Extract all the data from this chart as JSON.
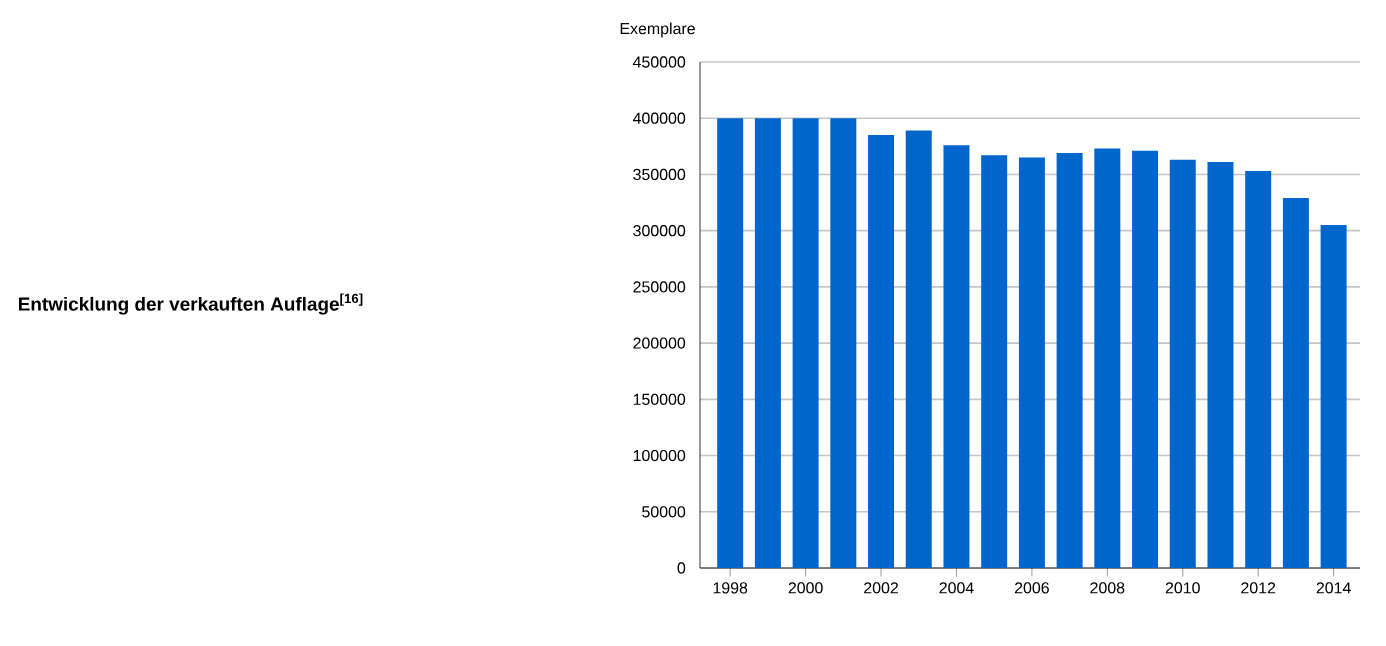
{
  "chart_data": {
    "type": "bar",
    "title": "Entwicklung der verkauften Auflage$^{[16]}$",
    "ylabel": "Exemplare",
    "categories": [
      "1998",
      null,
      "2000",
      null,
      "2002",
      null,
      "2004",
      null,
      "2006",
      null,
      "2008",
      null,
      "2010",
      null,
      "2012",
      null,
      "2014"
    ],
    "values": [
      400000,
      400000,
      400000,
      400000,
      385000,
      389000,
      376000,
      367000,
      365000,
      369000,
      373000,
      371000,
      363000,
      361000,
      353000,
      329000,
      305000
    ],
    "color": "#0066cc",
    "ylim": [
      0,
      450000
    ],
    "yticks": [
      0,
      50000,
      100000,
      150000,
      200000,
      250000,
      300000,
      350000,
      400000,
      450000
    ],
    "grid": "y"
  }
}
